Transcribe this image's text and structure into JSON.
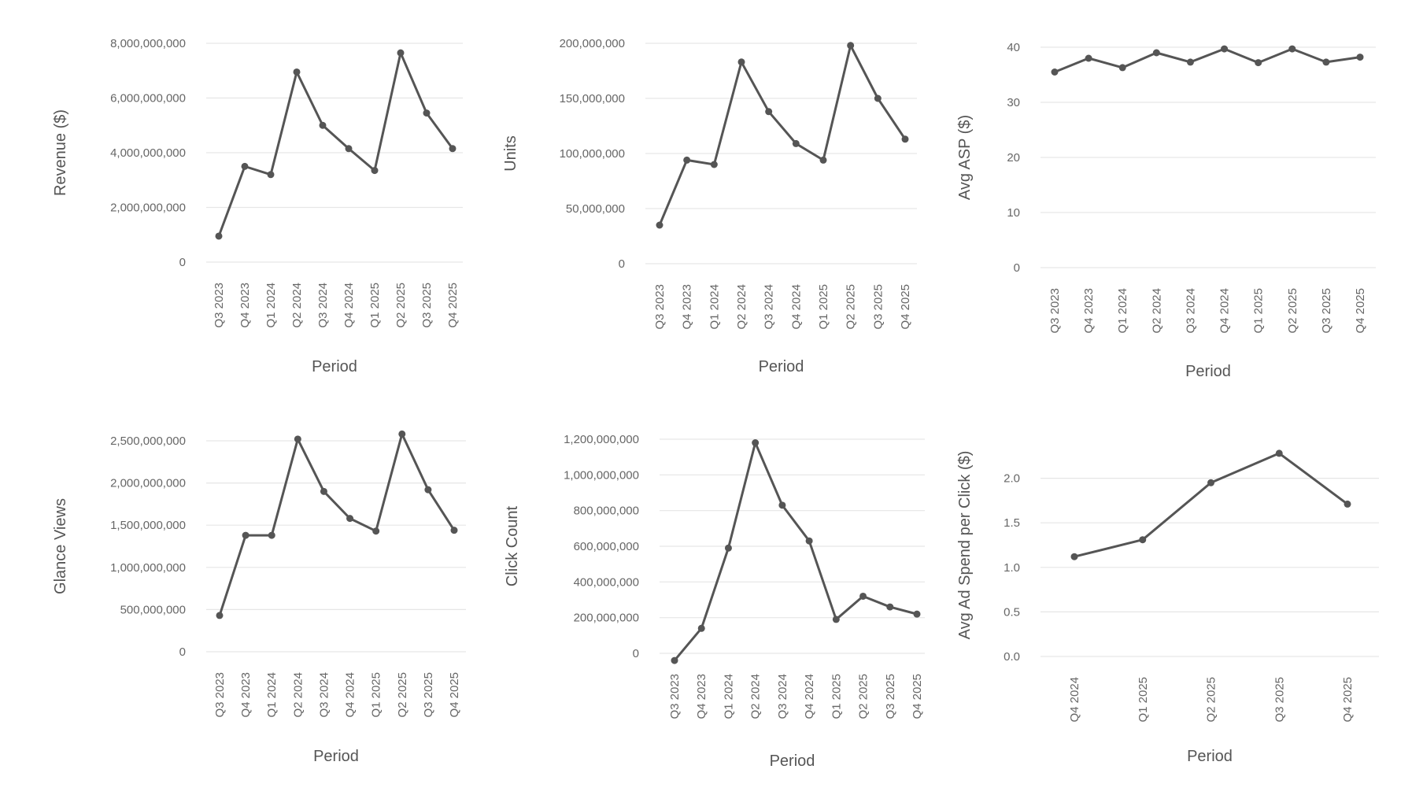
{
  "chart_data": [
    {
      "type": "line",
      "title": "",
      "xlabel": "Period",
      "ylabel": "Revenue ($)",
      "ylim": [
        0,
        8000000000
      ],
      "yticks": [
        0,
        2000000000,
        4000000000,
        6000000000,
        8000000000
      ],
      "ytick_labels": [
        "0",
        "2,000,000,000",
        "4,000,000,000",
        "6,000,000,000",
        "8,000,000,000"
      ],
      "categories": [
        "Q3 2023",
        "Q4 2023",
        "Q1 2024",
        "Q2 2024",
        "Q3 2024",
        "Q4 2024",
        "Q1 2025",
        "Q2 2025",
        "Q3 2025",
        "Q4 2025"
      ],
      "values": [
        950000000,
        3500000000,
        3200000000,
        6950000000,
        5000000000,
        4150000000,
        3350000000,
        7650000000,
        5450000000,
        4150000000
      ],
      "grid": true
    },
    {
      "type": "line",
      "title": "",
      "xlabel": "Period",
      "ylabel": "Units",
      "ylim": [
        0,
        200000000
      ],
      "yticks": [
        0,
        50000000,
        100000000,
        150000000,
        200000000
      ],
      "ytick_labels": [
        "0",
        "50,000,000",
        "100,000,000",
        "150,000,000",
        "200,000,000"
      ],
      "categories": [
        "Q3 2023",
        "Q4 2023",
        "Q1 2024",
        "Q2 2024",
        "Q3 2024",
        "Q4 2024",
        "Q1 2025",
        "Q2 2025",
        "Q3 2025",
        "Q4 2025"
      ],
      "values": [
        35000000,
        94000000,
        90000000,
        183000000,
        138000000,
        109000000,
        94000000,
        198000000,
        150000000,
        113000000
      ],
      "grid": true
    },
    {
      "type": "line",
      "title": "",
      "xlabel": "Period",
      "ylabel": "Avg ASP ($)",
      "ylim": [
        0,
        40
      ],
      "yticks": [
        0,
        10,
        20,
        30,
        40
      ],
      "ytick_labels": [
        "0",
        "10",
        "20",
        "30",
        "40"
      ],
      "categories": [
        "Q3 2023",
        "Q4 2023",
        "Q1 2024",
        "Q2 2024",
        "Q3 2024",
        "Q4 2024",
        "Q1 2025",
        "Q2 2025",
        "Q3 2025",
        "Q4 2025"
      ],
      "values": [
        35.5,
        38,
        36.3,
        39,
        37.3,
        39.7,
        37.2,
        39.7,
        37.3,
        38.2
      ],
      "grid": true
    },
    {
      "type": "line",
      "title": "",
      "xlabel": "Period",
      "ylabel": "Glance Views",
      "ylim": [
        0,
        2500000000
      ],
      "yticks": [
        0,
        500000000,
        1000000000,
        1500000000,
        2000000000,
        2500000000
      ],
      "ytick_labels": [
        "0",
        "500,000,000",
        "1,000,000,000",
        "1,500,000,000",
        "2,000,000,000",
        "2,500,000,000"
      ],
      "categories": [
        "Q3 2023",
        "Q4 2023",
        "Q1 2024",
        "Q2 2024",
        "Q3 2024",
        "Q4 2024",
        "Q1 2025",
        "Q2 2025",
        "Q3 2025",
        "Q4 2025"
      ],
      "values": [
        430000000,
        1380000000,
        1380000000,
        2520000000,
        1900000000,
        1580000000,
        1430000000,
        2580000000,
        1920000000,
        1440000000
      ],
      "grid": true
    },
    {
      "type": "line",
      "title": "",
      "xlabel": "Period",
      "ylabel": "Click Count",
      "ylim": [
        0,
        1200000000
      ],
      "yticks": [
        0,
        200000000,
        400000000,
        600000000,
        800000000,
        1000000000,
        1200000000
      ],
      "ytick_labels": [
        "0",
        "200,000,000",
        "400,000,000",
        "600,000,000",
        "800,000,000",
        "1,000,000,000",
        "1,200,000,000"
      ],
      "categories": [
        "Q3 2023",
        "Q4 2023",
        "Q1 2024",
        "Q2 2024",
        "Q3 2024",
        "Q4 2024",
        "Q1 2025",
        "Q2 2025",
        "Q3 2025",
        "Q4 2025"
      ],
      "values": [
        -40000000,
        140000000,
        590000000,
        1180000000,
        830000000,
        630000000,
        190000000,
        320000000,
        260000000,
        220000000
      ],
      "grid": true
    },
    {
      "type": "line",
      "title": "",
      "xlabel": "Period",
      "ylabel": "Avg Ad Spend per Click ($)",
      "ylim": [
        0,
        2.5
      ],
      "yticks": [
        0,
        0.5,
        1.0,
        1.5,
        2.0
      ],
      "ytick_labels": [
        "0.0",
        "0.5",
        "1.0",
        "1.5",
        "2.0"
      ],
      "categories": [
        "Q4 2024",
        "Q1 2025",
        "Q2 2025",
        "Q3 2025",
        "Q4 2025"
      ],
      "values": [
        1.12,
        1.31,
        1.95,
        2.28,
        1.71
      ],
      "grid": true
    }
  ]
}
